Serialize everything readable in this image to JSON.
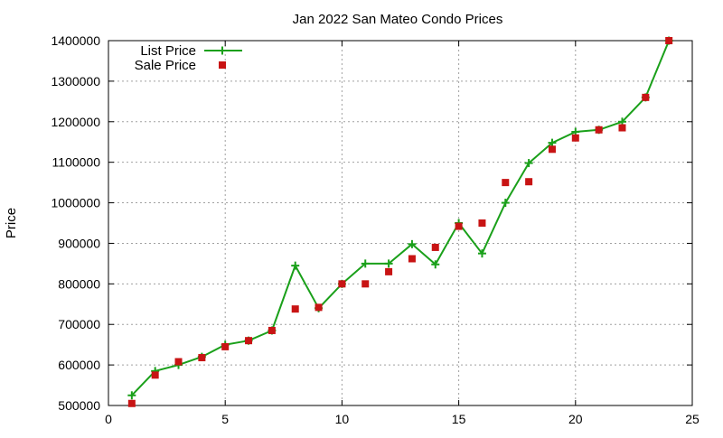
{
  "chart_data": {
    "type": "line",
    "title": "Jan 2022 San Mateo Condo Prices",
    "xlabel": "",
    "ylabel": "Price",
    "xlim": [
      0,
      25
    ],
    "ylim": [
      500000,
      1400000
    ],
    "x_ticks": [
      0,
      5,
      10,
      15,
      20,
      25
    ],
    "y_ticks": [
      500000,
      600000,
      700000,
      800000,
      900000,
      1000000,
      1100000,
      1200000,
      1300000,
      1400000
    ],
    "grid": true,
    "legend_position": "top-left",
    "series": [
      {
        "name": "List Price",
        "style": "line-plus",
        "color": "#1aa01a",
        "x": [
          1,
          2,
          3,
          4,
          5,
          6,
          7,
          8,
          9,
          10,
          11,
          12,
          13,
          14,
          15,
          16,
          17,
          18,
          19,
          20,
          21,
          22,
          23,
          24
        ],
        "values": [
          525000,
          585000,
          600000,
          620000,
          650000,
          660000,
          685000,
          845000,
          740000,
          800000,
          850000,
          850000,
          898000,
          848000,
          950000,
          875000,
          1000000,
          1098000,
          1148000,
          1175000,
          1180000,
          1200000,
          1260000,
          1400000
        ]
      },
      {
        "name": "Sale Price",
        "style": "square-marker",
        "color": "#c81414",
        "x": [
          1,
          2,
          3,
          4,
          5,
          6,
          7,
          8,
          9,
          10,
          11,
          12,
          13,
          14,
          15,
          16,
          17,
          18,
          19,
          20,
          21,
          22,
          23,
          24
        ],
        "values": [
          505000,
          575000,
          608000,
          618000,
          645000,
          660000,
          685000,
          738000,
          742000,
          800000,
          800000,
          830000,
          862000,
          890000,
          942000,
          950000,
          1050000,
          1052000,
          1132000,
          1160000,
          1180000,
          1185000,
          1260000,
          1400000
        ]
      }
    ]
  }
}
